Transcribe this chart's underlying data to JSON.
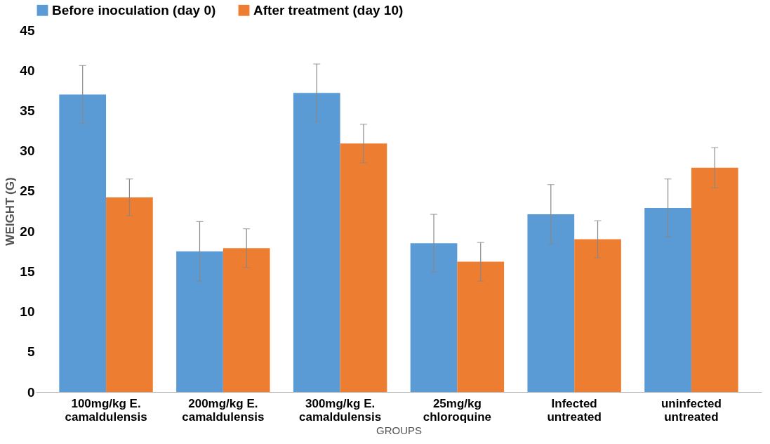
{
  "chart_data": {
    "type": "bar",
    "xlabel": "GROUPS",
    "ylabel": "WEIGHT (G)",
    "categories": [
      "100mg/kg E.\ncamaldulensis",
      "200mg/kg E.\ncamaldulensis",
      "300mg/kg E.\ncamaldulensis",
      "25mg/kg\nchloroquine",
      "Infected\nuntreated",
      "uninfected\nuntreated"
    ],
    "series": [
      {
        "name": "Before inoculation (day 0)",
        "color": "#5b9bd5",
        "values": [
          37.0,
          17.5,
          37.2,
          18.5,
          22.1,
          22.9
        ],
        "errors": [
          3.6,
          3.7,
          3.6,
          3.6,
          3.7,
          3.6
        ]
      },
      {
        "name": "After treatment (day 10)",
        "color": "#ed7d31",
        "values": [
          24.2,
          17.9,
          30.9,
          16.2,
          19.0,
          27.9
        ],
        "errors": [
          2.3,
          2.4,
          2.4,
          2.4,
          2.3,
          2.5
        ]
      }
    ],
    "ylim": [
      0,
      45
    ],
    "yticks": [
      0,
      5,
      10,
      15,
      20,
      25,
      30,
      35,
      40,
      45
    ],
    "grid": false,
    "legend": "top"
  }
}
